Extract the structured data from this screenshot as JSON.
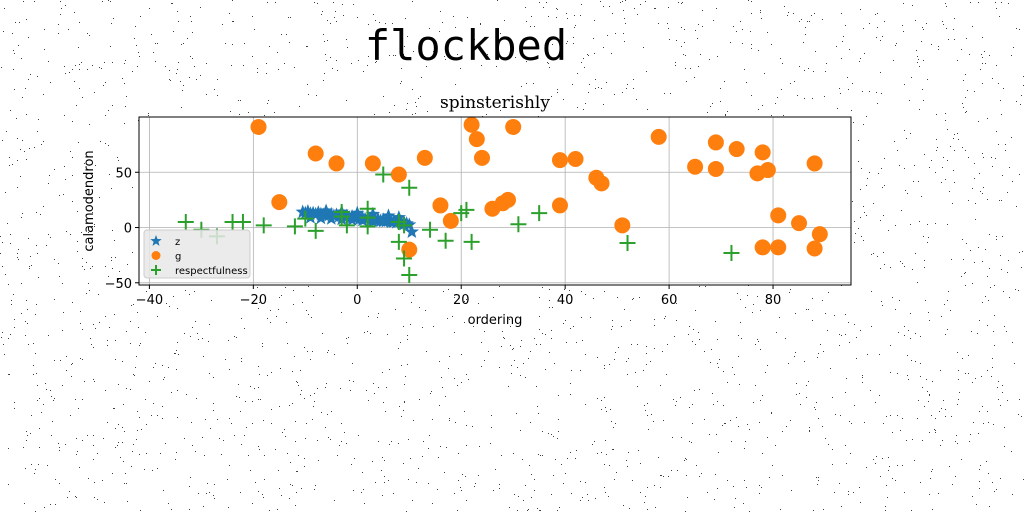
{
  "chart_data": {
    "type": "scatter",
    "title": "flockbed",
    "subtitle": "spinsterishly",
    "xlabel": "ordering",
    "ylabel": "calamodendron",
    "xlim": [
      -42,
      95
    ],
    "ylim": [
      -52,
      100
    ],
    "xticks": [
      -40,
      -20,
      0,
      20,
      40,
      60,
      80
    ],
    "yticks": [
      -50,
      0,
      50
    ],
    "grid": true,
    "legend_position": "lower-left",
    "series": [
      {
        "name": "z",
        "marker": "star",
        "color": "#1f77b4",
        "points": [
          [
            -10.5,
            14
          ],
          [
            -10,
            13
          ],
          [
            -9.5,
            14.5
          ],
          [
            -9,
            12.5
          ],
          [
            -8.5,
            13
          ],
          [
            -8,
            12
          ],
          [
            -7.5,
            13.5
          ],
          [
            -7,
            12
          ],
          [
            -6.5,
            11.5
          ],
          [
            -6,
            12.5
          ],
          [
            -5.5,
            11
          ],
          [
            -5,
            12
          ],
          [
            -4.5,
            10.5
          ],
          [
            -4,
            11.5
          ],
          [
            -3.5,
            10
          ],
          [
            -3,
            11
          ],
          [
            -2.5,
            9.5
          ],
          [
            -2,
            10.5
          ],
          [
            -1.5,
            9
          ],
          [
            -1,
            10
          ],
          [
            -0.5,
            8.5
          ],
          [
            0,
            9.5
          ],
          [
            0.5,
            8
          ],
          [
            1,
            9
          ],
          [
            1.5,
            7.5
          ],
          [
            2,
            8.5
          ],
          [
            2.5,
            7
          ],
          [
            3,
            8
          ],
          [
            3.5,
            6.5
          ],
          [
            4,
            7.5
          ],
          [
            4.5,
            6
          ],
          [
            5,
            7
          ],
          [
            5.5,
            5.5
          ],
          [
            6,
            6.5
          ],
          [
            6.5,
            5
          ],
          [
            7,
            6
          ],
          [
            7.5,
            4.5
          ],
          [
            8,
            5.5
          ],
          [
            8.5,
            4
          ],
          [
            9,
            3
          ],
          [
            9.5,
            3.5
          ],
          [
            10,
            2.5
          ],
          [
            10.5,
            -4
          ],
          [
            -9,
            9
          ],
          [
            -7,
            8.5
          ],
          [
            -5,
            8
          ],
          [
            -3,
            7.5
          ],
          [
            -1,
            7
          ],
          [
            1,
            6.5
          ],
          [
            3,
            6
          ],
          [
            5,
            5.5
          ],
          [
            7,
            5
          ],
          [
            9,
            4.5
          ],
          [
            -6,
            15
          ],
          [
            -3,
            14
          ],
          [
            0,
            13
          ],
          [
            3,
            12
          ],
          [
            6,
            10.5
          ],
          [
            8,
            9
          ]
        ]
      },
      {
        "name": "g",
        "marker": "circle",
        "color": "#ff7f0e",
        "points": [
          [
            -19,
            91
          ],
          [
            -15,
            23
          ],
          [
            -8,
            67
          ],
          [
            -4,
            58
          ],
          [
            3,
            58
          ],
          [
            8,
            48
          ],
          [
            10,
            -20
          ],
          [
            13,
            63
          ],
          [
            16,
            20
          ],
          [
            18,
            6
          ],
          [
            22,
            93
          ],
          [
            23,
            80
          ],
          [
            24,
            63
          ],
          [
            26,
            17
          ],
          [
            28,
            22
          ],
          [
            29,
            25
          ],
          [
            30,
            91
          ],
          [
            39,
            61
          ],
          [
            39,
            20
          ],
          [
            42,
            62
          ],
          [
            46,
            45
          ],
          [
            47,
            40
          ],
          [
            51,
            2
          ],
          [
            58,
            82
          ],
          [
            65,
            55
          ],
          [
            69,
            77
          ],
          [
            69,
            53
          ],
          [
            73,
            71
          ],
          [
            77,
            49
          ],
          [
            78,
            68
          ],
          [
            79,
            52
          ],
          [
            81,
            11
          ],
          [
            78,
            -18
          ],
          [
            81,
            -18
          ],
          [
            85,
            4
          ],
          [
            88,
            58
          ],
          [
            88,
            -19
          ],
          [
            89,
            -6
          ]
        ]
      },
      {
        "name": "respectfulness",
        "marker": "plus",
        "color": "#2ca02c",
        "points": [
          [
            -33,
            5
          ],
          [
            -30,
            -2
          ],
          [
            -27,
            -8
          ],
          [
            -24,
            5
          ],
          [
            -22,
            5
          ],
          [
            -18,
            2
          ],
          [
            -12,
            1
          ],
          [
            -10,
            8
          ],
          [
            -8,
            -3
          ],
          [
            -3,
            10
          ],
          [
            -3,
            14
          ],
          [
            -2,
            2
          ],
          [
            2,
            17
          ],
          [
            2,
            1
          ],
          [
            2,
            9
          ],
          [
            5,
            48
          ],
          [
            8,
            5
          ],
          [
            8,
            -13
          ],
          [
            9,
            -28
          ],
          [
            9,
            2
          ],
          [
            10,
            36
          ],
          [
            10,
            -43
          ],
          [
            14,
            -2
          ],
          [
            17,
            -12
          ],
          [
            20,
            13
          ],
          [
            21,
            16
          ],
          [
            22,
            -13
          ],
          [
            31,
            3
          ],
          [
            35,
            13
          ],
          [
            52,
            -14
          ],
          [
            72,
            -23
          ]
        ]
      }
    ]
  }
}
